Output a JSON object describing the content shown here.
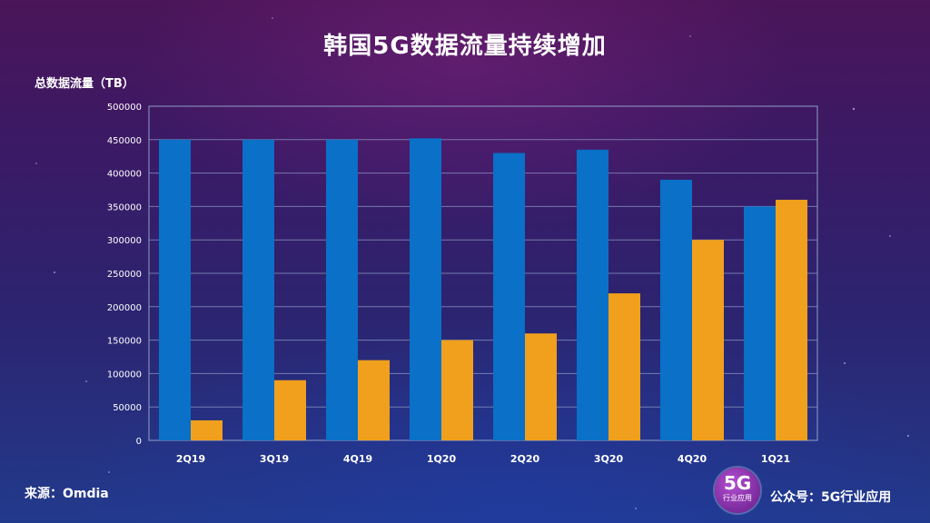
{
  "slide": {
    "title": "韩国5G数据流量持续增加",
    "source": "来源：Omdia",
    "logo_big": "5G",
    "logo_small": "行业应用",
    "account": "公众号：5G行业应用"
  },
  "colors": {
    "series1": "#0A70C8",
    "series2": "#F0A01C",
    "grid": "#8ea0c8"
  },
  "chart_data": {
    "type": "bar",
    "title": "韩国5G数据流量持续增加",
    "xlabel": "",
    "ylabel": "总数据流量（TB）",
    "ylim": [
      0,
      500000
    ],
    "yticks": [
      "0",
      "50000",
      "100000",
      "150000",
      "200000",
      "250000",
      "300000",
      "350000",
      "400000",
      "450000",
      "500000"
    ],
    "categories": [
      "2Q19",
      "3Q19",
      "4Q19",
      "1Q20",
      "2Q20",
      "3Q20",
      "4Q20",
      "1Q21"
    ],
    "series": [
      {
        "name": "series-1",
        "values": [
          450000,
          450000,
          450000,
          452000,
          430000,
          435000,
          390000,
          350000
        ]
      },
      {
        "name": "series-2",
        "values": [
          30000,
          90000,
          120000,
          150000,
          160000,
          220000,
          300000,
          360000
        ]
      }
    ],
    "grid": true,
    "legend": "none"
  }
}
